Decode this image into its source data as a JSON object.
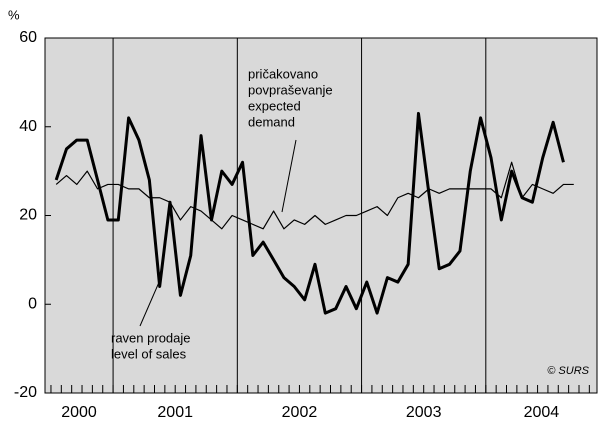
{
  "chart_data": {
    "type": "line",
    "y_unit": "%",
    "x": [
      2000.542,
      2000.625,
      2000.708,
      2000.792,
      2000.875,
      2000.958,
      2001.042,
      2001.125,
      2001.208,
      2001.292,
      2001.375,
      2001.458,
      2001.542,
      2001.625,
      2001.708,
      2001.792,
      2001.875,
      2001.958,
      2002.042,
      2002.125,
      2002.208,
      2002.292,
      2002.375,
      2002.458,
      2002.542,
      2002.625,
      2002.708,
      2002.792,
      2002.875,
      2002.958,
      2003.042,
      2003.125,
      2003.208,
      2003.292,
      2003.375,
      2003.458,
      2003.542,
      2003.625,
      2003.708,
      2003.792,
      2003.875,
      2003.958,
      2004.042,
      2004.125,
      2004.208,
      2004.292,
      2004.375,
      2004.458,
      2004.542,
      2004.625,
      2004.708
    ],
    "series": [
      {
        "name": "raven prodaje level of sales",
        "color": "#000000",
        "width": 3,
        "values": [
          28,
          35,
          37,
          37,
          28,
          19,
          19,
          42,
          37,
          28,
          4,
          23,
          2,
          11,
          38,
          19,
          30,
          27,
          32,
          11,
          14,
          10,
          6,
          4,
          1,
          9,
          -2,
          -1,
          4,
          -1,
          5,
          -2,
          6,
          5,
          9,
          43,
          25,
          8,
          9,
          12,
          30,
          42,
          33,
          19,
          30,
          24,
          23,
          33,
          41,
          32,
          null
        ]
      },
      {
        "name": "pričakovano povpraševanje expected demand",
        "color": "#000000",
        "width": 1.2,
        "values": [
          27,
          29,
          27,
          30,
          26,
          27,
          27,
          26,
          26,
          24,
          24,
          23,
          19,
          22,
          21,
          19,
          17,
          20,
          19,
          18,
          17,
          21,
          17,
          19,
          18,
          20,
          18,
          19,
          20,
          20,
          21,
          22,
          20,
          24,
          25,
          24,
          26,
          25,
          26,
          26,
          26,
          26,
          26,
          24,
          32,
          24,
          27,
          26,
          25,
          27,
          27
        ]
      }
    ],
    "annotations": [
      {
        "lines": [
          "pričakovano",
          "povpraševanje",
          "expected",
          "demand"
        ]
      },
      {
        "lines": [
          "raven prodaje",
          "level of sales"
        ]
      }
    ],
    "source": "© SURS",
    "xlim": [
      2000.452,
      2004.895
    ],
    "xticks": [
      2001,
      2002,
      2003,
      2004
    ],
    "year_labels": [
      2000,
      2001,
      2002,
      2003,
      2004
    ],
    "ylim": [
      -20,
      60
    ],
    "yticks": [
      -20,
      0,
      20,
      40,
      60
    ],
    "background": "#d9d9d9"
  }
}
